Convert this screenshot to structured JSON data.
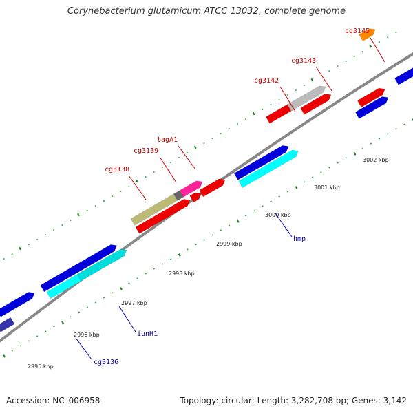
{
  "title": "Corynebacterium glutamicum ATCC 13032, complete genome",
  "accession": "Accession: NC_006958",
  "summary": "Topology: circular; Length: 3,282,708 bp; Genes: 3,142",
  "colors": {
    "backbone": "#888888",
    "minor_tick": "#33aa33",
    "major_tick": "#228822",
    "red_label": "#cc0000",
    "blue_label": "#0000aa"
  },
  "scale_labels": [
    "2995 kbp",
    "2996 kbp",
    "2997 kbp",
    "2998 kbp",
    "2999 kbp",
    "3000 kbp",
    "3001 kbp",
    "3002 kbp"
  ],
  "gene_labels_outer": [
    "cg3138",
    "cg3139",
    "tagA1",
    "cg3142",
    "cg3143",
    "cg3145"
  ],
  "gene_labels_inner": [
    "cg3136",
    "iunH1",
    "hmp"
  ],
  "features": [
    {
      "color": "#3333aa"
    },
    {
      "color": "#0000dd"
    },
    {
      "color": "#0000dd"
    },
    {
      "color": "#0000dd"
    },
    {
      "color": "#00ffff"
    },
    {
      "color": "#00dddd"
    },
    {
      "color": "#bbbb77"
    },
    {
      "color": "#666666"
    },
    {
      "color": "#ff2299"
    },
    {
      "color": "#ee0000"
    },
    {
      "color": "#ee0000"
    },
    {
      "color": "#ee0000"
    },
    {
      "color": "#0000dd"
    },
    {
      "color": "#00ffff"
    },
    {
      "color": "#ee0000"
    },
    {
      "color": "#bbbbbb"
    },
    {
      "color": "#ee0000"
    },
    {
      "color": "#ee0000"
    },
    {
      "color": "#0000dd"
    },
    {
      "color": "#ff8800"
    },
    {
      "color": "#0000dd"
    }
  ]
}
